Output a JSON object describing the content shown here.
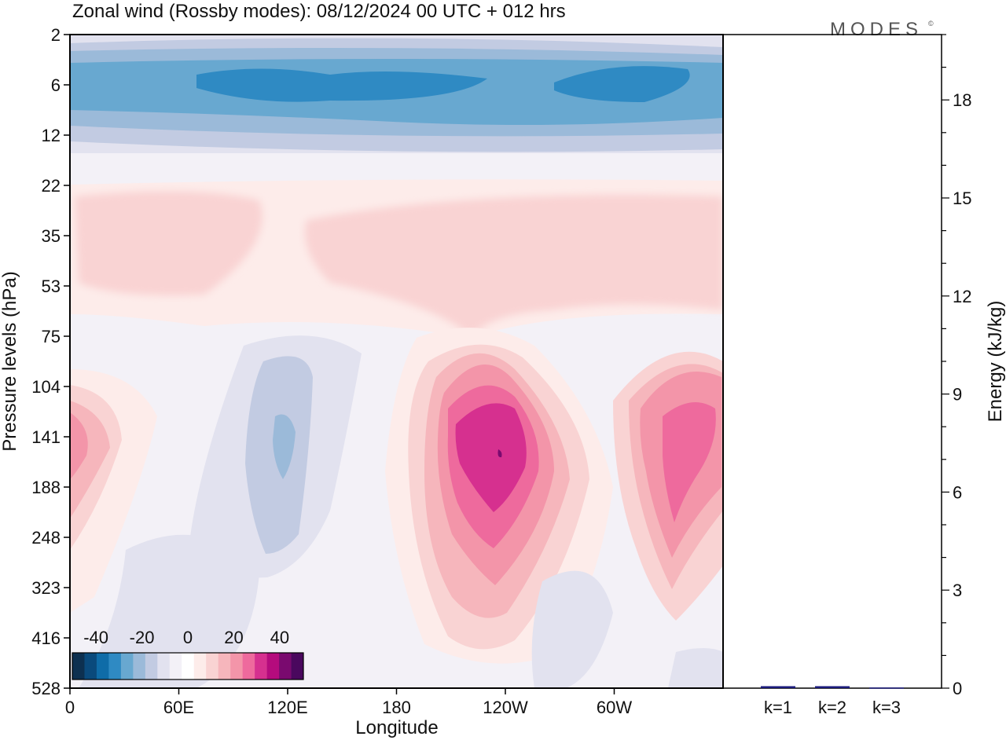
{
  "title": "Zonal wind (Rossby modes):  08/12/2024  00 UTC  + 012 hrs",
  "logo_text": "MODES",
  "logo_mark": "©",
  "chart_data": [
    {
      "type": "heatmap",
      "title": "Zonal wind (Rossby modes):  08/12/2024  00 UTC  + 012 hrs",
      "xlabel": "Longitude",
      "ylabel": "Pressure levels (hPa)",
      "x_ticks": [
        "0",
        "60E",
        "120E",
        "180",
        "120W",
        "60W"
      ],
      "x_tick_values": [
        0,
        60,
        120,
        180,
        240,
        300
      ],
      "xlim": [
        0,
        360
      ],
      "y_ticks": [
        "2",
        "6",
        "12",
        "22",
        "35",
        "53",
        "75",
        "104",
        "141",
        "188",
        "248",
        "323",
        "416",
        "528"
      ],
      "y_scale": "model levels, top to bottom",
      "colorbar": {
        "tick_labels": [
          "-40",
          "-20",
          "0",
          "20",
          "40"
        ],
        "tick_values": [
          -40,
          -20,
          0,
          20,
          40
        ],
        "levels": [
          -45,
          -40,
          -35,
          -30,
          -25,
          -20,
          -15,
          -10,
          -5,
          0,
          5,
          10,
          15,
          20,
          25,
          30,
          35,
          40,
          45
        ],
        "colors": [
          "#0d3050",
          "#0a4a7c",
          "#0f6ca8",
          "#2f8ac3",
          "#68a8d0",
          "#9bbad9",
          "#c2cbe2",
          "#e2e2ef",
          "#f3f1f7",
          "#ffffff",
          "#fdecea",
          "#f9d3d3",
          "#f6b6bc",
          "#f395a9",
          "#ee6a9d",
          "#d6308f",
          "#b50b7d",
          "#7a0a6f",
          "#4a085e"
        ]
      },
      "features": [
        {
          "name": "easterly band",
          "lon_range": [
            50,
            350
          ],
          "level_range": [
            "5",
            "9"
          ],
          "min_value": -30
        },
        {
          "name": "westerly jet",
          "lon_center": 238,
          "level": "141",
          "max_value": 40
        },
        {
          "name": "westerly jet",
          "lon_center": 337,
          "level": "141",
          "max_value": 30
        },
        {
          "name": "westerly jet",
          "lon_center": 8,
          "level": "141",
          "max_value": 20
        },
        {
          "name": "easterly core",
          "lon_center": 118,
          "level": "141",
          "min_value": -15
        }
      ]
    },
    {
      "type": "bar",
      "ylabel": "Energy (kJ/kg)",
      "categories": [
        "k=1",
        "k=2",
        "k=3"
      ],
      "values": [
        0.06,
        0.06,
        0.02
      ],
      "ylim": [
        0,
        20
      ],
      "y_ticks": [
        0,
        3,
        6,
        9,
        12,
        15,
        18
      ],
      "bar_color": "#1a1a7a"
    }
  ]
}
